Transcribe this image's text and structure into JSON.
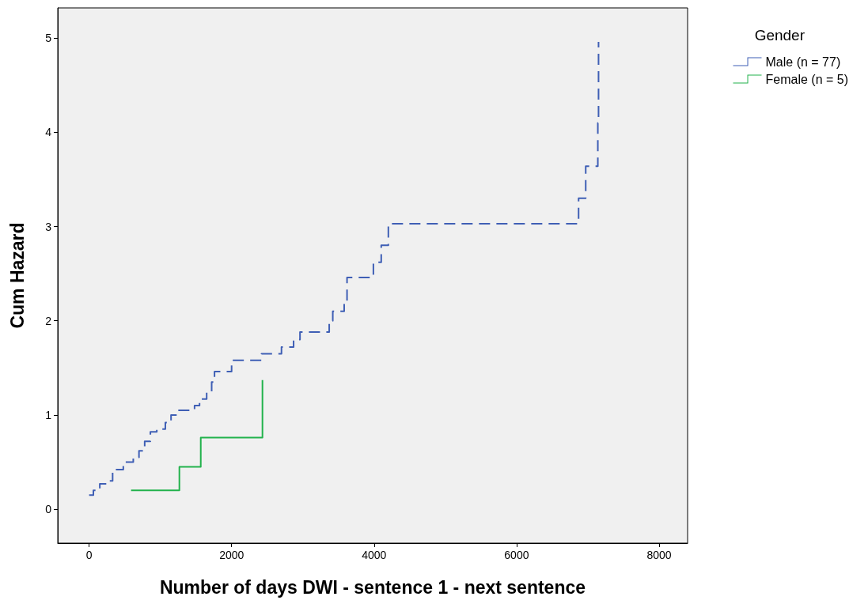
{
  "chart_data": {
    "type": "step",
    "xlabel": "Number of days DWI - sentence 1 - next sentence",
    "ylabel": "Cum Hazard",
    "legend_title": "Gender",
    "legend": "top right",
    "grid": false,
    "xlim": [
      -440,
      8400
    ],
    "xticks": [
      0,
      2000,
      4000,
      6000,
      8000
    ],
    "ylim": [
      -0.36,
      5.32
    ],
    "yticks": [
      0,
      1,
      2,
      3,
      4,
      5
    ],
    "series": [
      {
        "name": "Male (n = 77)",
        "color": "#3f5fb5",
        "line_style": "dashed",
        "x": [
          0,
          60,
          150,
          250,
          330,
          480,
          620,
          700,
          780,
          860,
          950,
          1070,
          1150,
          1250,
          1480,
          1550,
          1650,
          1720,
          1760,
          2000,
          2420,
          2700,
          2870,
          2960,
          3370,
          3420,
          3580,
          3620,
          3990,
          4100,
          4200,
          6870,
          6970,
          7140,
          7150
        ],
        "values": [
          0.15,
          0.2,
          0.27,
          0.3,
          0.42,
          0.5,
          0.55,
          0.62,
          0.72,
          0.82,
          0.85,
          0.92,
          1.0,
          1.05,
          1.1,
          1.17,
          1.25,
          1.35,
          1.46,
          1.58,
          1.65,
          1.72,
          1.8,
          1.88,
          2.0,
          2.1,
          2.2,
          2.46,
          2.62,
          2.8,
          3.03,
          3.3,
          3.64,
          4.1,
          4.96
        ]
      },
      {
        "name": "Female (n = 5)",
        "color": "#22b24c",
        "line_style": "solid",
        "x": [
          589,
          1267,
          1567,
          2433
        ],
        "values": [
          0.2,
          0.45,
          0.76,
          1.37
        ]
      }
    ]
  }
}
